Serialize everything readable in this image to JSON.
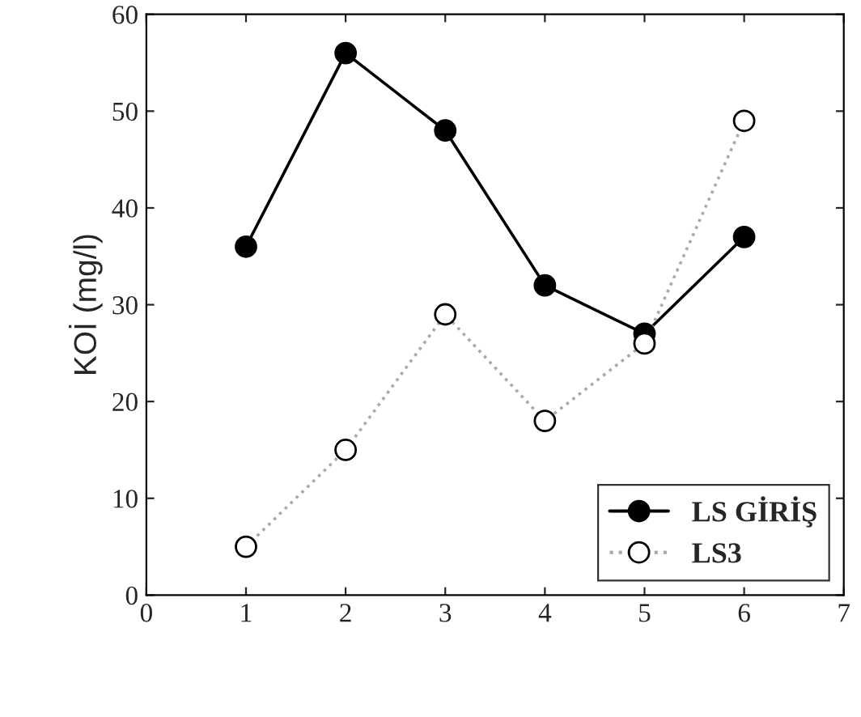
{
  "chart_data": {
    "type": "line",
    "ylabel": "KOİ (mg/l)",
    "x": [
      1,
      2,
      3,
      4,
      5,
      6
    ],
    "series": [
      {
        "name": "LS GİRİŞ",
        "color": "#000000",
        "values": [
          36,
          56,
          48,
          32,
          27,
          37
        ],
        "marker": "circle",
        "line_style": "solid"
      },
      {
        "name": "LS3",
        "color": "#ffffff",
        "values": [
          5,
          15,
          29,
          18,
          26,
          49
        ],
        "marker": "circle",
        "line_style": "dotted"
      }
    ],
    "xlim": [
      0,
      7
    ],
    "xticks": [
      0,
      1,
      2,
      3,
      4,
      5,
      6,
      7
    ],
    "ylim": [
      0,
      60
    ],
    "yticks": [
      0,
      10,
      20,
      30,
      40,
      50,
      60
    ],
    "grid": false,
    "legend": "bottom right"
  }
}
